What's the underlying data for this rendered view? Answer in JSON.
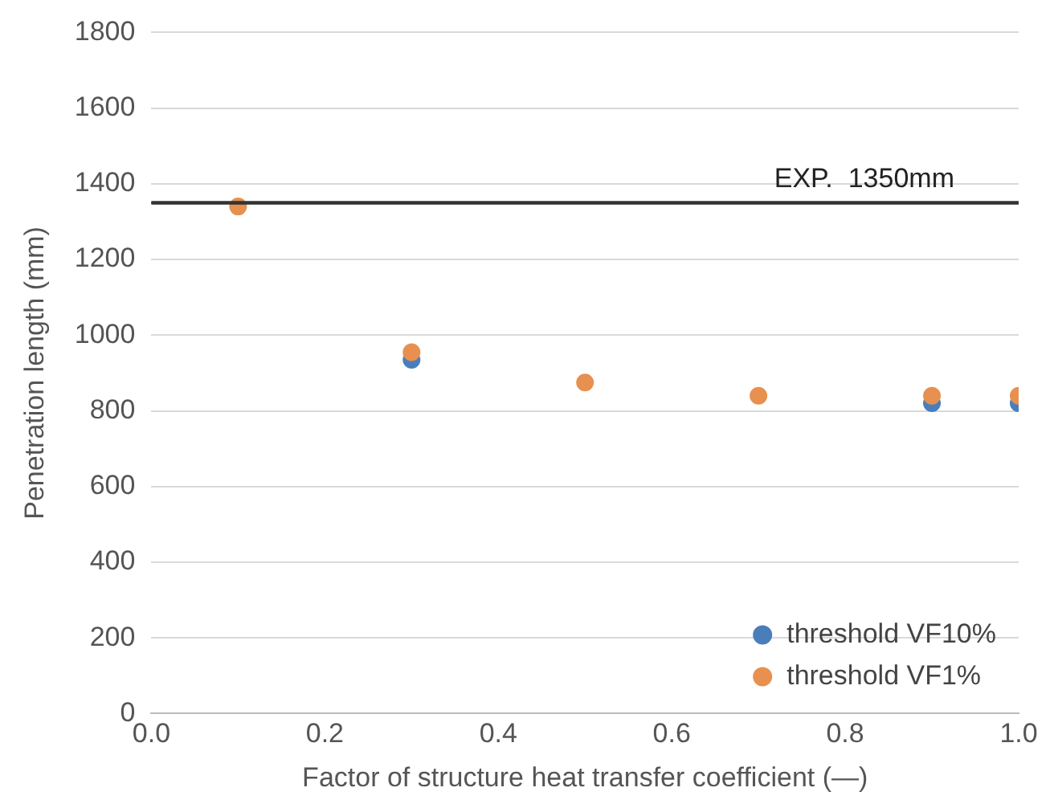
{
  "chart_data": {
    "type": "scatter",
    "xlabel": "Factor of structure heat transfer coefficient (—)",
    "ylabel": "Penetration length (mm)",
    "series": [
      {
        "name": "threshold VF10%",
        "color": "#4a7ebb",
        "x": [
          0.3,
          0.9,
          1.0
        ],
        "values": [
          935,
          820,
          820
        ]
      },
      {
        "name": "threshold VF1%",
        "color": "#e8904f",
        "x": [
          0.1,
          0.3,
          0.5,
          0.7,
          0.9,
          1.0
        ],
        "values": [
          1340,
          955,
          875,
          840,
          840,
          840
        ]
      }
    ],
    "xlim": [
      0,
      1
    ],
    "xticks": [
      {
        "value": 0,
        "label": "0.0"
      },
      {
        "value": 0.2,
        "label": "0.2"
      },
      {
        "value": 0.4,
        "label": "0.4"
      },
      {
        "value": 0.6,
        "label": "0.6"
      },
      {
        "value": 0.8,
        "label": "0.8"
      },
      {
        "value": 1,
        "label": "1.0"
      }
    ],
    "ylim": [
      0,
      1800
    ],
    "yticks": [
      0,
      200,
      400,
      600,
      800,
      1000,
      1200,
      1400,
      1600,
      1800
    ],
    "ref_lines": [
      {
        "axis": "y",
        "value": 1350,
        "label": "EXP.  1350mm",
        "color": "#333333"
      }
    ],
    "grid": "y",
    "legend": "bottom right",
    "marker": "circle"
  }
}
